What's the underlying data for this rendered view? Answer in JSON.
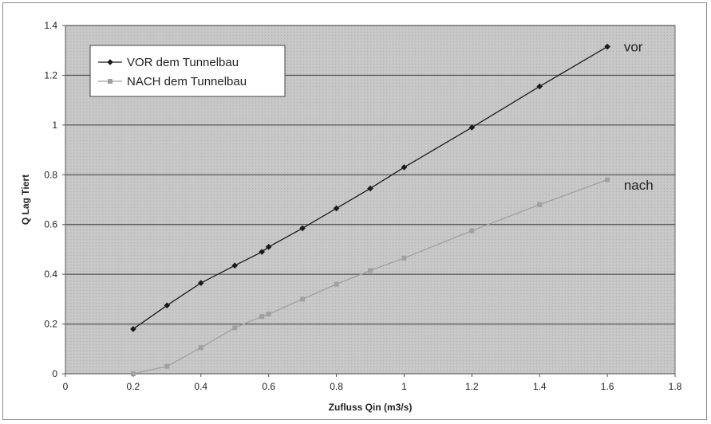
{
  "chart_data": {
    "type": "line",
    "xlabel": "Zufluss Qin (m3/s)",
    "ylabel": "Q Lag Tiert",
    "xlim": [
      0,
      1.8
    ],
    "ylim": [
      0,
      1.4
    ],
    "xticks": [
      0,
      0.2,
      0.4,
      0.6,
      0.8,
      1,
      1.2,
      1.4,
      1.6,
      1.8
    ],
    "yticks": [
      0,
      0.2,
      0.4,
      0.6,
      0.8,
      1,
      1.2,
      1.4
    ],
    "xtick_labels": [
      "0",
      "0.2",
      "0.4",
      "0.6",
      "0.8",
      "1",
      "1.2",
      "1.4",
      "1.6",
      "1.8"
    ],
    "ytick_labels": [
      "0",
      "0.2",
      "0.4",
      "0.6",
      "0.8",
      "1",
      "1.2",
      "1.4"
    ],
    "grid": "horizontal",
    "legend_position": "top-left",
    "series": [
      {
        "name": "VOR dem Tunnelbau",
        "color": "#1a1a1a",
        "marker": "diamond",
        "x": [
          0.2,
          0.3,
          0.4,
          0.5,
          0.58,
          0.6,
          0.7,
          0.8,
          0.9,
          1.0,
          1.2,
          1.4,
          1.6
        ],
        "y": [
          0.18,
          0.275,
          0.365,
          0.435,
          0.49,
          0.51,
          0.585,
          0.665,
          0.745,
          0.83,
          0.99,
          1.155,
          1.315
        ]
      },
      {
        "name": "NACH dem Tunnelbau",
        "color": "#a0a0a0",
        "marker": "square",
        "x": [
          0.2,
          0.3,
          0.4,
          0.5,
          0.58,
          0.6,
          0.7,
          0.8,
          0.9,
          1.0,
          1.2,
          1.4,
          1.6
        ],
        "y": [
          0.0,
          0.03,
          0.105,
          0.185,
          0.23,
          0.24,
          0.3,
          0.36,
          0.415,
          0.465,
          0.575,
          0.68,
          0.78
        ]
      }
    ],
    "annotations": [
      {
        "text": "vor",
        "x": 1.63,
        "y": 1.315
      },
      {
        "text": "nach",
        "x": 1.63,
        "y": 0.76
      }
    ]
  }
}
